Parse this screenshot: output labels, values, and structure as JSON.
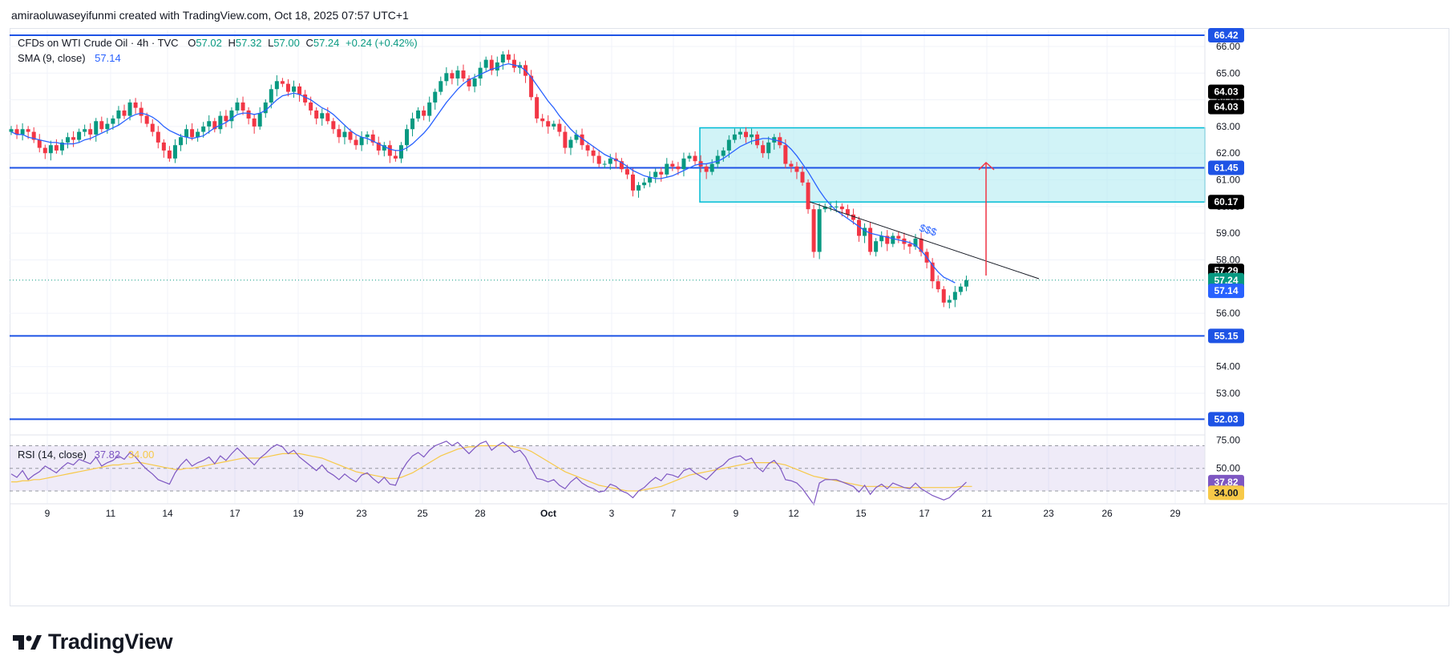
{
  "header": {
    "credit": "amiraoluwaseyifunmi created with TradingView.com, Oct 18, 2025 07:57 UTC+1"
  },
  "legend": {
    "symbol": "CFDs on WTI Crude Oil · 4h · TVC",
    "o_label": "O",
    "o": "57.02",
    "h_label": "H",
    "h": "57.32",
    "l_label": "L",
    "l": "57.00",
    "c_label": "C",
    "c": "57.24",
    "change": "+0.24 (+0.42%)",
    "sma_label": "SMA (9, close)",
    "sma_value": "57.14",
    "rsi_label": "RSI (14, close)",
    "rsi_value": "37.82",
    "rsi_signal": "34.00"
  },
  "brand": {
    "name": "TradingView"
  },
  "colors": {
    "up": "#089981",
    "down": "#f23645",
    "sma": "#2962ff",
    "level": "#1e53e5",
    "zone": "#b2ebf2",
    "rsi": "#7e57c2",
    "rsi_ma": "#f7c948",
    "arrow": "#f23645"
  },
  "chart_data": {
    "type": "candlestick",
    "timeframe": "4h",
    "price_axis": {
      "ylim": [
        51.5,
        66.6
      ],
      "ticks": [
        "66.00",
        "65.00",
        "64.00",
        "63.00",
        "62.00",
        "61.00",
        "60.00",
        "59.00",
        "58.00",
        "56.00",
        "54.00",
        "53.00"
      ]
    },
    "x_axis": {
      "ticks": [
        "9",
        "11",
        "14",
        "17",
        "19",
        "23",
        "25",
        "28",
        "Oct",
        "3",
        "7",
        "9",
        "12",
        "15",
        "17",
        "21",
        "23",
        "26",
        "29"
      ]
    },
    "horizontal_levels": [
      {
        "value": 66.42,
        "label": "66.42"
      },
      {
        "value": 61.45,
        "label": "61.45"
      },
      {
        "value": 55.15,
        "label": "55.15"
      },
      {
        "value": 52.03,
        "label": "52.03"
      }
    ],
    "zone": {
      "from": 60.17,
      "to": 62.95
    },
    "right_labels": [
      {
        "value": 64.03,
        "label": "64.03",
        "bg": "#000000"
      },
      {
        "value": 64.03,
        "label": "64.03",
        "bg": "#000000"
      },
      {
        "value": 60.17,
        "label": "60.17",
        "bg": "#000000"
      },
      {
        "value": 57.29,
        "label": "57.29",
        "bg": "#000000"
      },
      {
        "value": 57.24,
        "label": "57.24",
        "bg": "#089981"
      },
      {
        "value": 57.14,
        "label": "57.14",
        "bg": "#2962ff"
      }
    ],
    "annotation": "$$$",
    "closes": [
      62.9,
      62.7,
      62.9,
      62.8,
      62.5,
      62.2,
      62.0,
      62.3,
      62.1,
      62.4,
      62.6,
      62.5,
      62.8,
      62.9,
      62.7,
      63.2,
      62.9,
      63.1,
      63.3,
      63.6,
      63.4,
      63.9,
      63.7,
      63.4,
      63.1,
      62.8,
      62.4,
      62.1,
      61.8,
      62.3,
      62.6,
      62.9,
      62.6,
      62.8,
      63.0,
      63.2,
      62.9,
      63.4,
      63.2,
      63.6,
      63.9,
      63.6,
      63.3,
      63.0,
      63.5,
      63.9,
      64.4,
      64.7,
      64.6,
      64.3,
      64.5,
      64.2,
      63.9,
      63.6,
      63.3,
      63.5,
      63.2,
      62.9,
      62.6,
      62.8,
      62.5,
      62.3,
      62.6,
      62.7,
      62.4,
      62.1,
      62.3,
      61.9,
      61.8,
      62.3,
      62.9,
      63.3,
      63.6,
      63.4,
      63.9,
      64.3,
      64.7,
      65.0,
      64.8,
      65.1,
      64.8,
      64.5,
      64.8,
      65.2,
      65.5,
      65.1,
      65.4,
      65.7,
      65.5,
      65.2,
      65.3,
      64.9,
      64.1,
      63.3,
      63.2,
      63.0,
      63.1,
      62.8,
      62.2,
      62.5,
      62.7,
      62.3,
      62.1,
      61.9,
      61.6,
      61.6,
      61.8,
      61.7,
      61.4,
      61.2,
      60.6,
      60.8,
      60.9,
      61.1,
      61.3,
      61.2,
      61.6,
      61.5,
      61.4,
      61.8,
      61.9,
      61.7,
      61.5,
      61.3,
      61.6,
      61.9,
      62.1,
      62.5,
      62.7,
      62.8,
      62.6,
      62.7,
      62.3,
      62.0,
      62.4,
      62.6,
      62.3,
      61.6,
      61.5,
      61.3,
      60.9,
      59.9,
      58.3,
      59.9,
      60.0,
      60.0,
      60.0,
      59.9,
      59.7,
      59.5,
      58.9,
      59.2,
      58.3,
      58.7,
      58.9,
      58.6,
      58.9,
      58.8,
      58.6,
      58.5,
      58.8,
      58.3,
      57.9,
      57.2,
      56.9,
      56.4,
      56.5,
      56.8,
      57.0,
      57.24
    ],
    "sma9": [
      62.8,
      62.7,
      62.7,
      62.6,
      62.55,
      62.5,
      62.45,
      62.4,
      62.4,
      62.35,
      62.35,
      62.35,
      62.4,
      62.5,
      62.55,
      62.65,
      62.75,
      62.85,
      62.95,
      63.05,
      63.2,
      63.35,
      63.45,
      63.5,
      63.45,
      63.35,
      63.2,
      63.0,
      62.85,
      62.75,
      62.65,
      62.6,
      62.55,
      62.6,
      62.65,
      62.8,
      62.95,
      63.05,
      63.15,
      63.3,
      63.45,
      63.5,
      63.5,
      63.45,
      63.5,
      63.6,
      63.8,
      64.0,
      64.15,
      64.2,
      64.25,
      64.2,
      64.1,
      64.0,
      63.85,
      63.7,
      63.6,
      63.45,
      63.25,
      63.05,
      62.85,
      62.7,
      62.6,
      62.55,
      62.45,
      62.35,
      62.25,
      62.15,
      62.1,
      62.1,
      62.2,
      62.35,
      62.55,
      62.75,
      63.0,
      63.3,
      63.6,
      63.9,
      64.15,
      64.4,
      64.6,
      64.75,
      64.85,
      64.95,
      65.05,
      65.15,
      65.2,
      65.3,
      65.35,
      65.3,
      65.25,
      65.1,
      64.85,
      64.55,
      64.25,
      63.95,
      63.7,
      63.4,
      63.15,
      62.9,
      62.7,
      62.55,
      62.4,
      62.25,
      62.1,
      61.95,
      61.85,
      61.75,
      61.65,
      61.5,
      61.35,
      61.25,
      61.15,
      61.1,
      61.05,
      61.05,
      61.1,
      61.15,
      61.25,
      61.35,
      61.45,
      61.55,
      61.6,
      61.6,
      61.65,
      61.7,
      61.8,
      61.95,
      62.1,
      62.25,
      62.35,
      62.45,
      62.5,
      62.55,
      62.55,
      62.5,
      62.45,
      62.35,
      62.15,
      61.9,
      61.6,
      61.3,
      60.95,
      60.6,
      60.3,
      60.05,
      59.85,
      59.7,
      59.55,
      59.4,
      59.25,
      59.1,
      59.0,
      58.95,
      58.9,
      58.85,
      58.8,
      58.75,
      58.7,
      58.65,
      58.55,
      58.35,
      58.1,
      57.8,
      57.55,
      57.35,
      57.25,
      57.14
    ],
    "rsi": {
      "ylim": [
        25,
        76
      ],
      "ticks": [
        "75.00",
        "50.00"
      ],
      "bands": [
        70,
        30,
        50
      ],
      "values": [
        45,
        42,
        48,
        40,
        44,
        47,
        52,
        49,
        46,
        51,
        55,
        53,
        58,
        56,
        54,
        60,
        52,
        55,
        57,
        61,
        58,
        64,
        60,
        54,
        49,
        45,
        40,
        38,
        36,
        46,
        53,
        58,
        52,
        55,
        57,
        60,
        54,
        61,
        57,
        63,
        68,
        63,
        58,
        53,
        59,
        63,
        68,
        71,
        69,
        63,
        66,
        60,
        56,
        52,
        48,
        53,
        47,
        44,
        40,
        45,
        41,
        38,
        44,
        46,
        41,
        37,
        42,
        36,
        35,
        47,
        55,
        61,
        64,
        60,
        66,
        70,
        72,
        74,
        70,
        73,
        68,
        63,
        68,
        72,
        74,
        66,
        70,
        73,
        69,
        64,
        66,
        60,
        50,
        41,
        40,
        38,
        40,
        35,
        32,
        38,
        42,
        37,
        34,
        32,
        29,
        30,
        36,
        34,
        30,
        28,
        24,
        30,
        33,
        38,
        42,
        39,
        45,
        44,
        42,
        48,
        50,
        46,
        43,
        40,
        45,
        50,
        53,
        58,
        60,
        61,
        57,
        59,
        51,
        47,
        54,
        57,
        51,
        40,
        39,
        37,
        32,
        25,
        18,
        37,
        40,
        40,
        40,
        38,
        36,
        34,
        29,
        35,
        27,
        33,
        36,
        32,
        37,
        35,
        33,
        32,
        37,
        32,
        29,
        26,
        24,
        22,
        24,
        29,
        33,
        37.82
      ],
      "ma": [
        38,
        38,
        39,
        39,
        40,
        40,
        41,
        42,
        43,
        44,
        45,
        46,
        47,
        48,
        49,
        50,
        51,
        52,
        53,
        53,
        54,
        54,
        55,
        55,
        54,
        53,
        52,
        51,
        50,
        49,
        49,
        50,
        50,
        51,
        52,
        53,
        54,
        55,
        56,
        57,
        58,
        59,
        59,
        59,
        59,
        60,
        61,
        62,
        63,
        63,
        63,
        63,
        62,
        61,
        60,
        59,
        57,
        55,
        53,
        51,
        49,
        47,
        46,
        45,
        44,
        43,
        42,
        41,
        41,
        42,
        44,
        46,
        49,
        52,
        55,
        58,
        61,
        63,
        65,
        67,
        68,
        69,
        69,
        70,
        70,
        70,
        70,
        70,
        70,
        69,
        68,
        67,
        65,
        62,
        59,
        56,
        53,
        50,
        47,
        45,
        43,
        41,
        39,
        37,
        35,
        34,
        33,
        32,
        31,
        30,
        30,
        30,
        31,
        32,
        33,
        34,
        36,
        38,
        40,
        42,
        44,
        45,
        46,
        47,
        48,
        49,
        50,
        51,
        52,
        53,
        54,
        55,
        55,
        55,
        55,
        55,
        54,
        53,
        51,
        49,
        47,
        45,
        43,
        42,
        41,
        40,
        39,
        38,
        37,
        36,
        35,
        34,
        34,
        34,
        34,
        34,
        33,
        33,
        33,
        33,
        33,
        33,
        33,
        33,
        33,
        33,
        33,
        33,
        34,
        34,
        34.0
      ]
    }
  }
}
